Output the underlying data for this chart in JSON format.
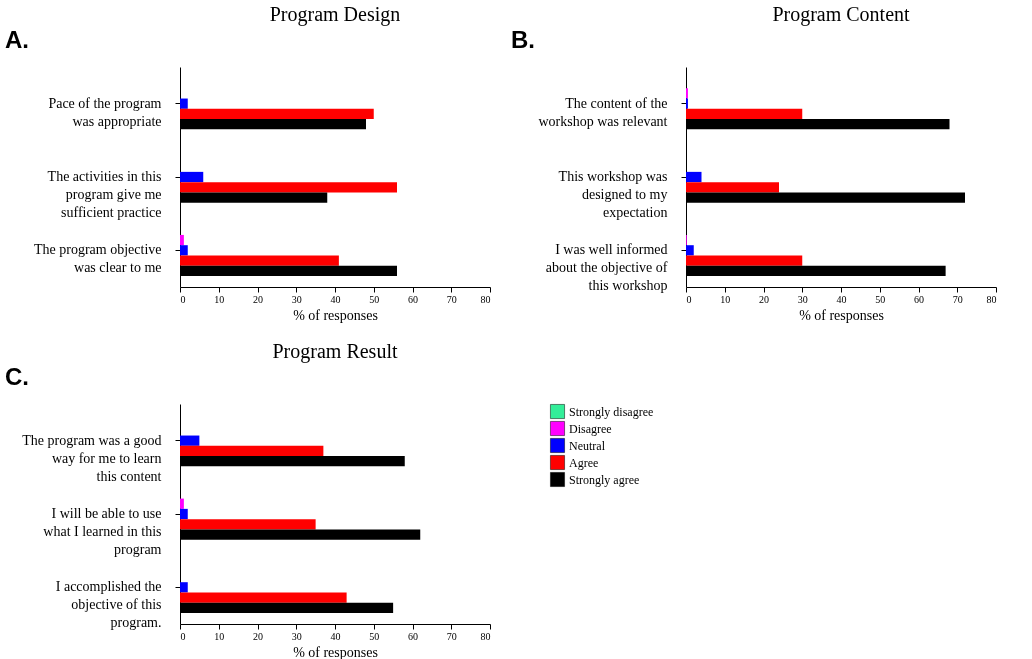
{
  "chart_data": [
    {
      "type": "bar",
      "orientation": "horizontal",
      "title": "Program Design",
      "annotations": [
        "A."
      ],
      "xlabel": "% of responses",
      "xlim": [
        0,
        80
      ],
      "xticks": [
        0,
        10,
        20,
        30,
        40,
        50,
        60,
        70,
        80
      ],
      "legend": false,
      "categories": [
        "Pace of the program was appropriate",
        "The activities in this program give me sufficient practice",
        "The program objective was clear to me"
      ],
      "series": [
        {
          "color": "#33ee99",
          "values": [
            0,
            0,
            0
          ]
        },
        {
          "color": "#ff00ff",
          "values": [
            0,
            0,
            1
          ]
        },
        {
          "color": "#0000ff",
          "values": [
            2,
            6,
            2
          ]
        },
        {
          "color": "#ff0000",
          "values": [
            50,
            56,
            41
          ]
        },
        {
          "color": "#000000",
          "values": [
            48,
            38,
            56
          ]
        }
      ]
    },
    {
      "type": "bar",
      "orientation": "horizontal",
      "title": "Program Content",
      "annotations": [
        "B."
      ],
      "xlabel": "% of responses",
      "xlim": [
        0,
        80
      ],
      "xticks": [
        0,
        10,
        20,
        30,
        40,
        50,
        60,
        70,
        80
      ],
      "legend": false,
      "categories": [
        "The content of the workshop was relevant",
        "This workshop was designed to my expectation",
        "I was well informed about the objective of this workshop"
      ],
      "series": [
        {
          "color": "#33ee99",
          "values": [
            0,
            0,
            0
          ]
        },
        {
          "color": "#ff00ff",
          "values": [
            0.5,
            0,
            0.2
          ]
        },
        {
          "color": "#0000ff",
          "values": [
            0.5,
            4,
            2
          ]
        },
        {
          "color": "#ff0000",
          "values": [
            30,
            24,
            30
          ]
        },
        {
          "color": "#000000",
          "values": [
            68,
            72,
            67
          ]
        }
      ]
    },
    {
      "type": "bar",
      "orientation": "horizontal",
      "title": "Program Result",
      "annotations": [
        "C."
      ],
      "xlabel": "% of responses",
      "xlim": [
        0,
        80
      ],
      "xticks": [
        0,
        10,
        20,
        30,
        40,
        50,
        60,
        70,
        80
      ],
      "legend": "right",
      "categories": [
        "The program was a good way for me to learn this content",
        "I will be able to use what I learned in this program",
        "I accomplished the objective of this program."
      ],
      "series": [
        {
          "name": "Strongly disagree",
          "color": "#33ee99",
          "values": [
            0,
            0,
            0
          ]
        },
        {
          "name": "Disagree",
          "color": "#ff00ff",
          "values": [
            0,
            1,
            0
          ]
        },
        {
          "name": "Neutral",
          "color": "#0000ff",
          "values": [
            5,
            2,
            2
          ]
        },
        {
          "name": "Agree",
          "color": "#ff0000",
          "values": [
            37,
            35,
            43
          ]
        },
        {
          "name": "Strongly agree",
          "color": "#000000",
          "values": [
            58,
            62,
            55
          ]
        }
      ]
    }
  ]
}
